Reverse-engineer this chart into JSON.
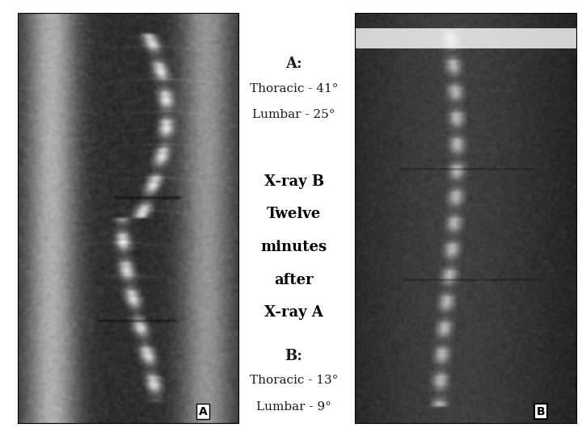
{
  "background_color": "#f0f0f0",
  "title": "",
  "xray_A_label": "A",
  "xray_B_label": "B",
  "text_A_title": "A:",
  "text_A_line1": "Thoracic - 41°",
  "text_A_line2": "Lumbar - 25°",
  "text_middle_line1": "X-ray B",
  "text_middle_line2": "Twelve",
  "text_middle_line3": "minutes",
  "text_middle_line4": "after",
  "text_middle_line5": "X-ray A",
  "text_B_title": "B:",
  "text_B_line1": "Thoracic - 13°",
  "text_B_line2": "Lumbar - 9°",
  "panel_bg": "#ffffff",
  "xray_A_bg": "#1a1a1a",
  "xray_B_bg": "#111111",
  "text_color": "#1a1a1a",
  "bold_text_color": "#000000",
  "label_box_color": "#ffffff",
  "label_text_color": "#000000"
}
